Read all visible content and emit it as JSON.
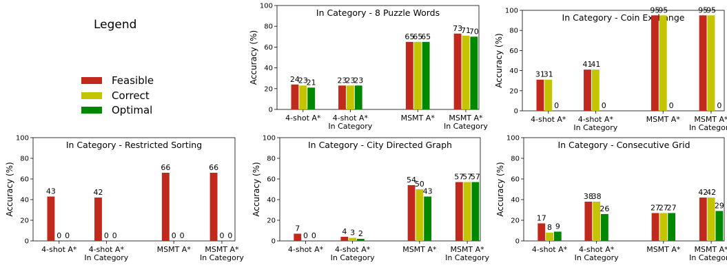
{
  "legend": {
    "title": "Legend",
    "entries": [
      {
        "label": "Feasible",
        "color": "#c0291b"
      },
      {
        "label": "Correct",
        "color": "#c4c400"
      },
      {
        "label": "Optimal",
        "color": "#008800"
      }
    ]
  },
  "chart_data": [
    {
      "type": "bar",
      "title": "In Category - 8 Puzzle Words",
      "ylabel": "Accuracy (%)",
      "ylim": [
        0,
        100
      ],
      "yticks": [
        0,
        20,
        40,
        60,
        80,
        100
      ],
      "categories": [
        "4-shot A*",
        "4-shot A*\nIn Category",
        "MSMT A*",
        "MSMT A*\nIn Category"
      ],
      "series": [
        {
          "name": "Feasible",
          "values": [
            24,
            23,
            65,
            73
          ]
        },
        {
          "name": "Correct",
          "values": [
            23,
            23,
            65,
            71
          ]
        },
        {
          "name": "Optimal",
          "values": [
            21,
            23,
            65,
            70
          ]
        }
      ]
    },
    {
      "type": "bar",
      "title": "In Category - Coin Exchange",
      "ylabel": "Accuracy (%)",
      "ylim": [
        0,
        100
      ],
      "yticks": [
        0,
        20,
        40,
        60,
        80,
        100
      ],
      "categories": [
        "4-shot A*",
        "4-shot A*\nIn Category",
        "MSMT A*",
        "MSMT A*\nIn Category"
      ],
      "series": [
        {
          "name": "Feasible",
          "values": [
            31,
            41,
            95,
            95
          ]
        },
        {
          "name": "Correct",
          "values": [
            31,
            41,
            95,
            95
          ]
        },
        {
          "name": "Optimal",
          "values": [
            0,
            0,
            0,
            0
          ]
        }
      ]
    },
    {
      "type": "bar",
      "title": "In Category - Restricted Sorting",
      "ylabel": "Accuracy (%)",
      "ylim": [
        0,
        100
      ],
      "yticks": [
        0,
        20,
        40,
        60,
        80,
        100
      ],
      "categories": [
        "4-shot A*",
        "4-shot A*\nIn Category",
        "MSMT A*",
        "MSMT A*\nIn Category"
      ],
      "series": [
        {
          "name": "Feasible",
          "values": [
            43,
            42,
            66,
            66
          ]
        },
        {
          "name": "Correct",
          "values": [
            0,
            0,
            0,
            0
          ]
        },
        {
          "name": "Optimal",
          "values": [
            0,
            0,
            0,
            0
          ]
        }
      ]
    },
    {
      "type": "bar",
      "title": "In Category - City Directed Graph",
      "ylabel": "Accuracy (%)",
      "ylim": [
        0,
        100
      ],
      "yticks": [
        0,
        20,
        40,
        60,
        80,
        100
      ],
      "categories": [
        "4-shot A*",
        "4-shot A*\nIn Category",
        "MSMT A*",
        "MSMT A*\nIn Category"
      ],
      "series": [
        {
          "name": "Feasible",
          "values": [
            7,
            4,
            54,
            57
          ]
        },
        {
          "name": "Correct",
          "values": [
            0,
            3,
            50,
            57
          ]
        },
        {
          "name": "Optimal",
          "values": [
            0,
            2,
            43,
            57
          ]
        }
      ]
    },
    {
      "type": "bar",
      "title": "In Category - Consecutive Grid",
      "ylabel": "Accuracy (%)",
      "ylim": [
        0,
        100
      ],
      "yticks": [
        0,
        20,
        40,
        60,
        80,
        100
      ],
      "categories": [
        "4-shot A*",
        "4-shot A*\nIn Category",
        "MSMT A*",
        "MSMT A*\nIn Category"
      ],
      "series": [
        {
          "name": "Feasible",
          "values": [
            17,
            38,
            27,
            42
          ]
        },
        {
          "name": "Correct",
          "values": [
            8,
            38,
            27,
            42
          ]
        },
        {
          "name": "Optimal",
          "values": [
            9,
            26,
            27,
            29
          ]
        }
      ]
    }
  ]
}
